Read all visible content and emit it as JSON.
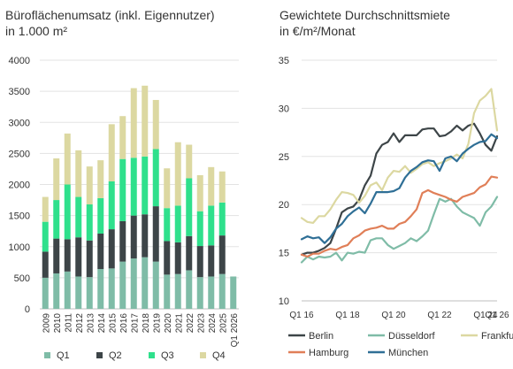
{
  "charts": {
    "left": {
      "title_line1": "Büroflächenumsatz (inkl. Eigennutzer)",
      "title_line2": "in 1.000 m²"
    },
    "right": {
      "title_line1": "Gewichtete Durchschnittsmiete",
      "title_line2": "in €/m²/Monat"
    }
  },
  "chart_data": [
    {
      "type": "bar",
      "stacked": true,
      "title": "Büroflächenumsatz (inkl. Eigennutzer) in 1.000 m²",
      "categories": [
        "2009",
        "2010",
        "2011",
        "2012",
        "2013",
        "2014",
        "2015",
        "2016",
        "2017",
        "2018",
        "2019",
        "2020",
        "2021",
        "2022",
        "2023",
        "2024",
        "2025",
        "Q1 2026"
      ],
      "series": [
        {
          "name": "Q1",
          "color": "#7fbca7",
          "values": [
            500,
            570,
            600,
            520,
            510,
            640,
            650,
            760,
            810,
            830,
            760,
            550,
            560,
            620,
            510,
            520,
            560,
            520
          ]
        },
        {
          "name": "Q2",
          "color": "#3d4548",
          "values": [
            420,
            560,
            520,
            630,
            590,
            570,
            630,
            650,
            690,
            690,
            890,
            540,
            510,
            550,
            500,
            500,
            620,
            0
          ]
        },
        {
          "name": "Q3",
          "color": "#2fe08c",
          "values": [
            480,
            620,
            880,
            650,
            580,
            570,
            770,
            1000,
            930,
            930,
            920,
            530,
            590,
            930,
            560,
            640,
            530,
            0
          ]
        },
        {
          "name": "Q4",
          "color": "#dcd8a1",
          "values": [
            400,
            670,
            820,
            750,
            610,
            610,
            920,
            690,
            1120,
            1140,
            790,
            640,
            1020,
            540,
            580,
            620,
            500,
            0
          ]
        }
      ],
      "ylim": [
        0,
        4000
      ],
      "yticks": [
        0,
        500,
        1000,
        1500,
        2000,
        2500,
        3000,
        3500,
        4000
      ],
      "grid": true,
      "legend": "bottom"
    },
    {
      "type": "line",
      "title": "Gewichtete Durchschnittsmiete in €/m²/Monat",
      "xticks": [
        "Q1 16",
        "Q1 18",
        "Q1 20",
        "Q1 22",
        "Q1 24",
        "Q1 26"
      ],
      "ylim": [
        10,
        35
      ],
      "yticks": [
        10,
        15,
        20,
        25,
        30,
        35
      ],
      "grid": true,
      "legend": "bottom",
      "series": [
        {
          "name": "Berlin",
          "color": "#3d4548",
          "values": [
            14.8,
            15,
            15,
            15.2,
            15.5,
            16,
            17.5,
            19.2,
            19.6,
            19.8,
            20.5,
            22,
            23,
            25.3,
            26.2,
            26.5,
            27.4,
            26.5,
            27.2,
            27.2,
            27.2,
            27.8,
            27.9,
            27.9,
            27.1,
            27.2,
            27.6,
            28.2,
            27.7,
            28.2,
            28.4,
            27.4,
            26.2,
            25.6,
            27.1
          ]
        },
        {
          "name": "Düsseldorf",
          "color": "#7fbca7",
          "values": [
            14,
            14.6,
            14.3,
            14.6,
            14.5,
            14.6,
            15,
            14.2,
            15,
            14.9,
            15.1,
            15,
            16.3,
            16.5,
            16.5,
            15.8,
            15.4,
            15.7,
            16,
            16.5,
            16.2,
            16.7,
            17.3,
            19,
            20.6,
            20.3,
            20.6,
            19.8,
            19.2,
            18.9,
            18.6,
            17.8,
            19.2,
            19.8,
            20.8
          ]
        },
        {
          "name": "Frankfurt",
          "color": "#dcd8a1",
          "values": [
            18.6,
            18.2,
            18.1,
            18.8,
            18.8,
            19.5,
            20.5,
            21.3,
            21.2,
            21,
            20.2,
            20.9,
            22,
            22.3,
            21.5,
            22.8,
            23.5,
            23.4,
            24,
            23.3,
            23.7,
            24.2,
            24.4,
            24,
            24.3,
            24.5,
            24.8,
            25.2,
            24.8,
            26.3,
            29.5,
            30.8,
            31.3,
            32,
            27.7
          ]
        },
        {
          "name": "Hamburg",
          "color": "#e07f58",
          "values": [
            14.8,
            14.6,
            14.9,
            14.9,
            15.2,
            15.4,
            15.3,
            15.6,
            15.8,
            16.5,
            16.8,
            17.3,
            17.5,
            17.6,
            17.8,
            17.5,
            17.5,
            18,
            18.2,
            18.8,
            19.5,
            21.2,
            21.5,
            21.2,
            21,
            20.8,
            20.5,
            20.3,
            20.8,
            21,
            21.2,
            21.8,
            22.1,
            22.9,
            22.8
          ]
        },
        {
          "name": "München",
          "color": "#2f6f96",
          "values": [
            16.4,
            16.7,
            16.5,
            16.6,
            16,
            16.6,
            17.5,
            18,
            18.8,
            19.3,
            19.7,
            19.1,
            20.1,
            21.3,
            21.3,
            21.3,
            21.4,
            21.7,
            22.8,
            23.5,
            23.9,
            24.4,
            24.6,
            24.5,
            23.5,
            24.8,
            25,
            24.5,
            25.3,
            25.8,
            26.2,
            26.5,
            26.6,
            27.3,
            26.9
          ]
        }
      ]
    }
  ]
}
